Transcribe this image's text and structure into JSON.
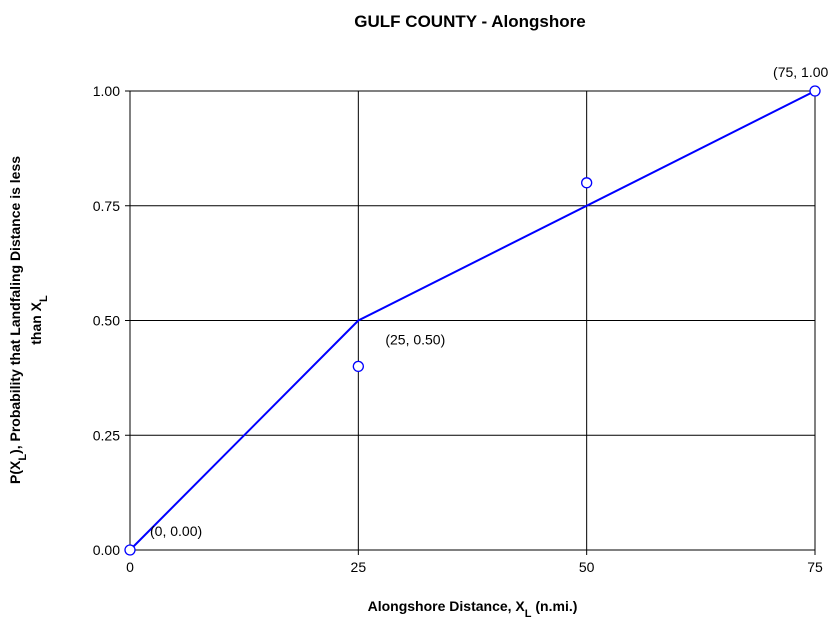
{
  "chart_data": {
    "type": "line",
    "title": "GULF  COUNTY - Alongshore",
    "xlabel": [
      "Alongshore Distance, X",
      "L",
      " (n.mi.)"
    ],
    "ylabel": [
      [
        "P(X",
        "L",
        "), Probability that Landfaling Distance is less"
      ],
      [
        "than X",
        "L"
      ]
    ],
    "series": [
      {
        "type": "line",
        "color": "#0000ff",
        "x": [
          0,
          25,
          75
        ],
        "values": [
          0,
          0.5,
          1.0
        ]
      },
      {
        "type": "scatter",
        "color": "#0000ff",
        "x": [
          0,
          25,
          50,
          75
        ],
        "values": [
          0,
          0.4,
          0.8,
          1.0
        ]
      }
    ],
    "annotations": [
      "(0, 0.00)",
      "(25, 0.50)",
      "(75, 1.00)"
    ],
    "xlim": [
      0,
      75
    ],
    "xticks": [
      0,
      25,
      50,
      75
    ],
    "ylim": [
      0,
      1
    ],
    "yticks": [
      {
        "value": 0,
        "label": "0.00"
      },
      {
        "value": 0.25,
        "label": "0.25"
      },
      {
        "value": 0.5,
        "label": "0.50"
      },
      {
        "value": 0.75,
        "label": "0.75"
      },
      {
        "value": 1,
        "label": "1.00"
      }
    ],
    "grid": true
  }
}
